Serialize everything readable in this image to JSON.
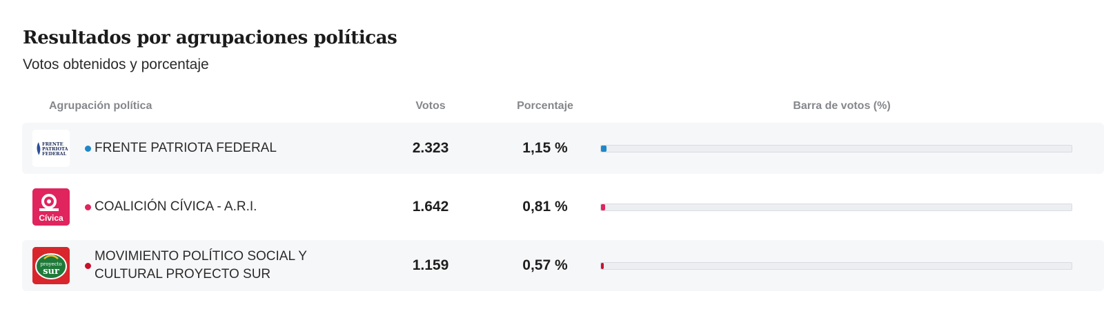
{
  "header": {
    "title": "Resultados por agrupaciones políticas",
    "subtitle": "Votos obtenidos y porcentaje"
  },
  "table": {
    "columns": [
      "Agrupación política",
      "Votos",
      "Porcentaje",
      "Barra de votos (%)"
    ],
    "rows": [
      {
        "name": "FRENTE PATRIOTA FEDERAL",
        "votes": "2.323",
        "percent": "1,15 %",
        "bar_percent": 1.15,
        "color": "#1e88c7",
        "logo_icon": "frente-patriota-federal-logo",
        "logo_text": [
          "FRENTE",
          "PATRIOTA",
          "FEDERAL"
        ]
      },
      {
        "name": "COALICIÓN CÍVICA - A.R.I.",
        "votes": "1.642",
        "percent": "0,81 %",
        "bar_percent": 0.81,
        "color": "#e0245e",
        "logo_icon": "coalicion-civica-logo",
        "logo_text": [
          "Cívica"
        ]
      },
      {
        "name": "MOVIMIENTO POLÍTICO SOCIAL Y CULTURAL PROYECTO SUR",
        "votes": "1.159",
        "percent": "0,57 %",
        "bar_percent": 0.57,
        "color": "#c8102e",
        "logo_icon": "proyecto-sur-logo",
        "logo_text": [
          "proyecto",
          "sur"
        ]
      }
    ]
  }
}
